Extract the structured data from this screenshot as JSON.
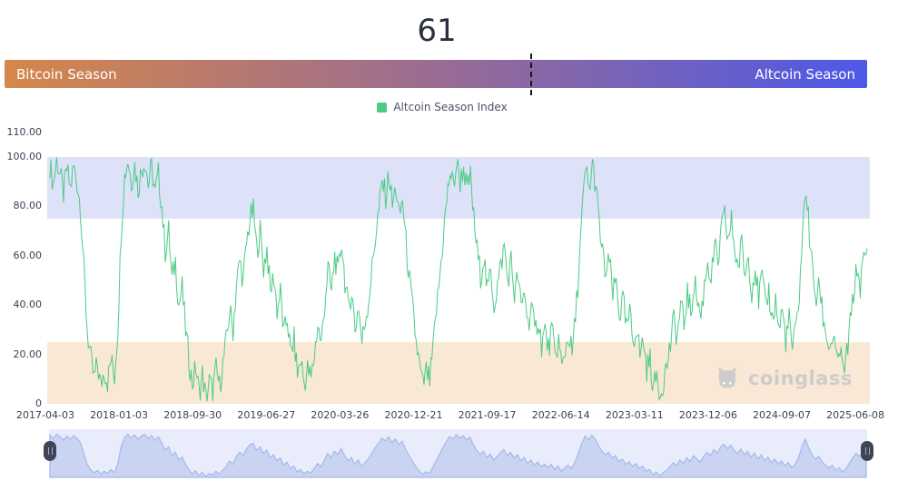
{
  "header": {
    "value": "61"
  },
  "season_bar": {
    "left_label": "Bitcoin Season",
    "right_label": "Altcoin Season",
    "marker_percent": 61,
    "gradient_left": "#D5874A",
    "gradient_mid": "#9A6C92",
    "gradient_right": "#4C59E8"
  },
  "legend": {
    "label": "Altcoin Season Index",
    "swatch_color": "#4CCB84"
  },
  "watermark": {
    "text": "coinglass"
  },
  "chart_data": {
    "type": "line",
    "title": "Altcoin Season Index",
    "ylim": [
      0,
      110
    ],
    "grid": false,
    "legend_position": "top-center",
    "y_ticks": [
      {
        "label": "110.00",
        "value": 110
      },
      {
        "label": "100.00",
        "value": 100
      },
      {
        "label": "80.00",
        "value": 80
      },
      {
        "label": "60.00",
        "value": 60
      },
      {
        "label": "40.00",
        "value": 40
      },
      {
        "label": "20.00",
        "value": 20
      },
      {
        "label": "0",
        "value": 0
      }
    ],
    "x_ticks": [
      "2017-04-03",
      "2018-01-03",
      "2018-09-30",
      "2019-06-27",
      "2020-03-26",
      "2020-12-21",
      "2021-09-17",
      "2022-06-14",
      "2023-03-11",
      "2023-12-06",
      "2024-09-07",
      "2025-06-08"
    ],
    "bands": [
      {
        "name": "altcoin-season-zone",
        "from": 75,
        "to": 100,
        "color": "#DDE2F8"
      },
      {
        "name": "bitcoin-season-zone",
        "from": 0,
        "to": 25,
        "color": "#FAE8D6"
      }
    ],
    "series": [
      {
        "name": "Altcoin Season Index",
        "color": "#4CCB84",
        "values": [
          97,
          89,
          99,
          93,
          85,
          95,
          87,
          96,
          90,
          80,
          55,
          30,
          18,
          10,
          16,
          7,
          14,
          9,
          18,
          11,
          30,
          70,
          92,
          99,
          90,
          97,
          87,
          95,
          99,
          89,
          96,
          85,
          93,
          80,
          62,
          70,
          50,
          58,
          40,
          47,
          30,
          18,
          8,
          15,
          4,
          12,
          2,
          9,
          5,
          14,
          7,
          16,
          25,
          38,
          30,
          48,
          58,
          50,
          65,
          75,
          78,
          62,
          70,
          55,
          63,
          45,
          52,
          38,
          45,
          28,
          35,
          20,
          26,
          12,
          18,
          8,
          14,
          10,
          20,
          32,
          24,
          40,
          55,
          45,
          60,
          52,
          66,
          50,
          38,
          46,
          30,
          40,
          25,
          34,
          42,
          55,
          68,
          78,
          90,
          84,
          93,
          80,
          88,
          75,
          83,
          65,
          50,
          38,
          25,
          15,
          7,
          13,
          9,
          22,
          38,
          52,
          68,
          82,
          94,
          88,
          98,
          90,
          96,
          86,
          92,
          75,
          62,
          52,
          60,
          45,
          54,
          40,
          48,
          56,
          64,
          50,
          58,
          44,
          52,
          38,
          46,
          32,
          40,
          28,
          35,
          24,
          30,
          22,
          30,
          18,
          26,
          14,
          22,
          28,
          20,
          35,
          55,
          78,
          95,
          86,
          97,
          88,
          72,
          60,
          52,
          58,
          44,
          50,
          36,
          42,
          30,
          36,
          25,
          32,
          20,
          26,
          14,
          18,
          6,
          12,
          4,
          10,
          16,
          24,
          34,
          27,
          40,
          32,
          45,
          36,
          50,
          42,
          35,
          48,
          58,
          50,
          64,
          56,
          70,
          76,
          66,
          74,
          62,
          55,
          65,
          52,
          60,
          46,
          56,
          42,
          52,
          38,
          46,
          34,
          42,
          30,
          38,
          26,
          34,
          22,
          30,
          45,
          70,
          88,
          68,
          52,
          42,
          48,
          35,
          28,
          22,
          28,
          16,
          22,
          12,
          20,
          32,
          45,
          55,
          48,
          58,
          63
        ]
      }
    ],
    "navigator": {
      "bg_color": "#E9EDFB",
      "fill_color": "#C9D4F2",
      "line_color": "#9FB2E6",
      "handle_color": "#3F4557"
    },
    "render": {
      "noise_amplitude": 5.5,
      "upsample": 3
    }
  }
}
